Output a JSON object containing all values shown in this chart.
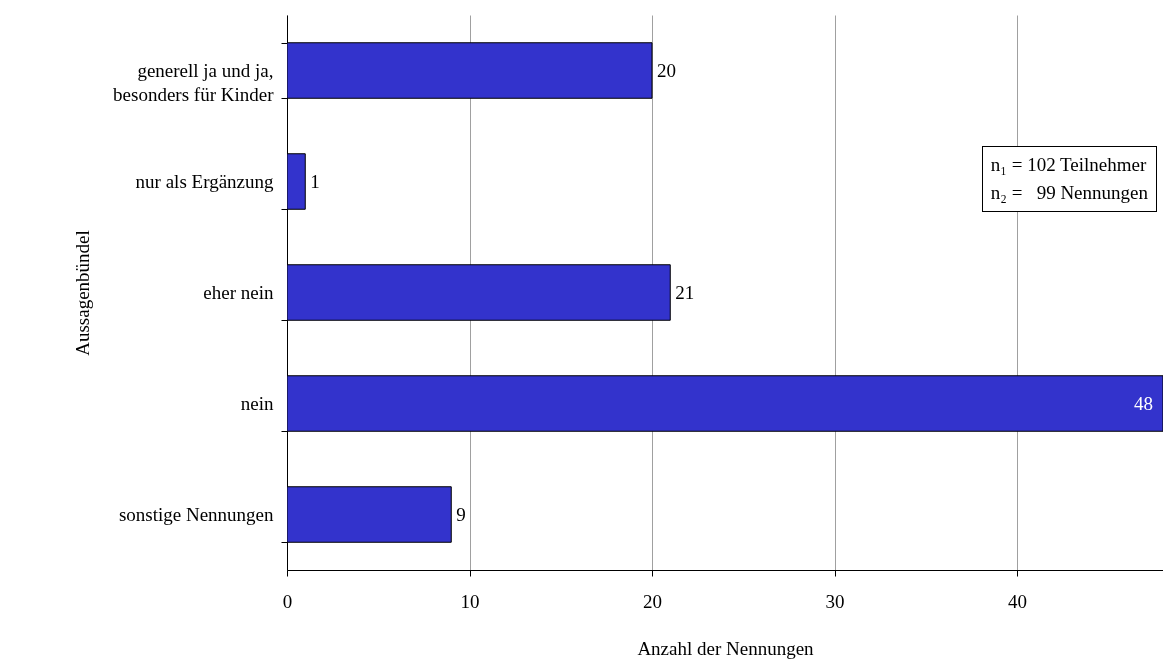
{
  "chart_data": {
    "type": "bar",
    "orientation": "horizontal",
    "categories": [
      "generell ja und ja,\nbesonders für Kinder",
      "nur als Ergänzung",
      "eher nein",
      "nein",
      "sonstige Nennungen"
    ],
    "values": [
      20,
      1,
      21,
      48,
      9
    ],
    "color": "#3333cc",
    "xlim": [
      0,
      48
    ],
    "xticks": [
      0,
      10,
      20,
      30,
      40
    ],
    "grid": "x",
    "data_labels": true,
    "xlabel": "Anzahl der Nennungen",
    "ylabel": "Aussagenbündel",
    "annotations": [
      "n₁ = 102 Teilnehmer",
      "n₂ =   99 Nennungen"
    ]
  }
}
